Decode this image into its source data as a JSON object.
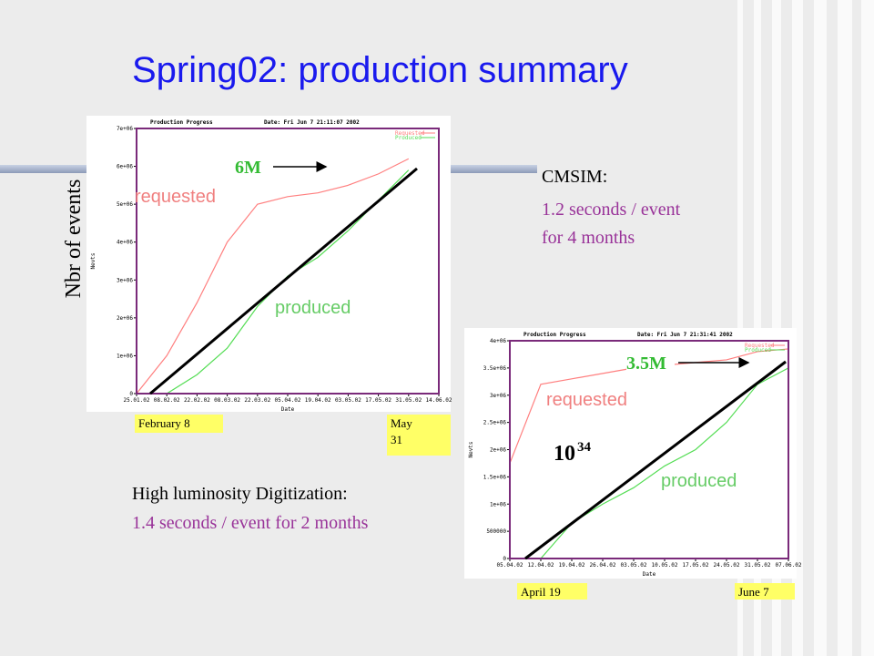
{
  "slide": {
    "title": "Spring02: production summary",
    "y_label": "Nbr of events",
    "cmsim": {
      "heading": "CMSIM:",
      "lines": [
        "1.2 seconds / event",
        "for 4 months"
      ]
    },
    "digitization": {
      "heading": "High luminosity Digitization:",
      "line": "1.4 seconds / event for 2 months"
    },
    "luminosity": {
      "base": "10",
      "exponent": "34"
    }
  },
  "chart_data": [
    {
      "type": "line",
      "title": "Production Progress",
      "subtitle": "Date: Fri Jun  7 21:11:07 2002",
      "x_label": "Date",
      "y_label": "Nevts",
      "categories": [
        "25.01.02",
        "08.02.02",
        "22.02.02",
        "08.03.02",
        "22.03.02",
        "05.04.02",
        "19.04.02",
        "03.05.02",
        "17.05.02",
        "31.05.02",
        "14.06.02"
      ],
      "series": [
        {
          "name": "Requested",
          "color": "#ff7f7f",
          "values": [
            0,
            1000000,
            2400000,
            4000000,
            5000000,
            5200000,
            5300000,
            5500000,
            5800000,
            6200000,
            null
          ]
        },
        {
          "name": "Produced",
          "color": "#55dd55",
          "values": [
            0,
            0,
            500000,
            1200000,
            2300000,
            3100000,
            3600000,
            4300000,
            5100000,
            5900000,
            null
          ]
        }
      ],
      "ylim": [
        0,
        7000000
      ],
      "yticks": [
        0,
        {
          "value": 1000000,
          "label": "1e+06"
        },
        {
          "value": 2000000,
          "label": "2e+06"
        },
        {
          "value": 3000000,
          "label": "3e+06"
        },
        {
          "value": 4000000,
          "label": "4e+06"
        },
        {
          "value": 5000000,
          "label": "5e+06"
        },
        {
          "value": 6000000,
          "label": "6e+06"
        },
        {
          "value": 7000000,
          "label": "7e+06"
        }
      ],
      "annotations": {
        "total": "6M",
        "requested": "requested",
        "produced": "produced",
        "start": "February 8",
        "end": "May 31"
      }
    },
    {
      "type": "line",
      "title": "Production Progress",
      "subtitle": "Date: Fri Jun  7 21:31:41 2002",
      "x_label": "Date",
      "y_label": "Nevts",
      "categories": [
        "05.04.02",
        "12.04.02",
        "19.04.02",
        "26.04.02",
        "03.05.02",
        "10.05.02",
        "17.05.02",
        "24.05.02",
        "31.05.02",
        "07.06.02"
      ],
      "series": [
        {
          "name": "Requested",
          "color": "#ff7f7f",
          "values": [
            1750000,
            3200000,
            3300000,
            3400000,
            3500000,
            3550000,
            3600000,
            3650000,
            3800000,
            3850000
          ]
        },
        {
          "name": "Produced",
          "color": "#55dd55",
          "values": [
            0,
            0,
            650000,
            1000000,
            1300000,
            1700000,
            2000000,
            2500000,
            3200000,
            3500000
          ]
        }
      ],
      "ylim": [
        0,
        4000000
      ],
      "yticks": [
        0,
        500000,
        {
          "value": 1000000,
          "label": "1e+06"
        },
        {
          "value": 1500000,
          "label": "1.5e+06"
        },
        {
          "value": 2000000,
          "label": "2e+06"
        },
        {
          "value": 2500000,
          "label": "2.5e+06"
        },
        {
          "value": 3000000,
          "label": "3e+06"
        },
        {
          "value": 3500000,
          "label": "3.5e+06"
        },
        {
          "value": 4000000,
          "label": "4e+06"
        }
      ],
      "annotations": {
        "total": "3.5M",
        "requested": "requested",
        "produced": "produced",
        "start": "April 19",
        "end": "June 7"
      }
    }
  ]
}
